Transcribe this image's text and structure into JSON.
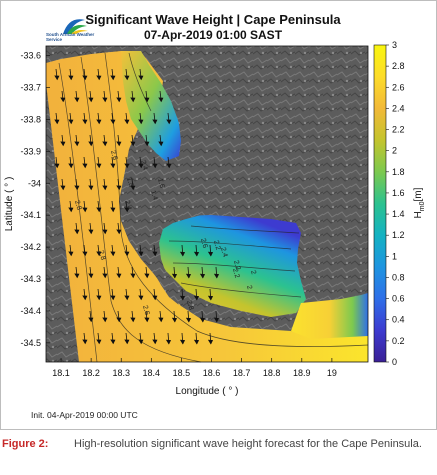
{
  "chart_data": {
    "type": "heatmap",
    "title": "Significant Wave Height | Cape Peninsula",
    "subtitle": "07-Apr-2019  01:00 SAST",
    "logo_text": "South African Weather Service",
    "xlabel": "Longitude ( ° )",
    "ylabel": "Latitude ( ° )",
    "xlim": [
      18.05,
      19.12
    ],
    "ylim": [
      -34.56,
      -33.57
    ],
    "xticks": [
      "18.1",
      "18.2",
      "18.3",
      "18.4",
      "18.5",
      "18.6",
      "18.7",
      "18.8",
      "18.9",
      "19"
    ],
    "yticks": [
      "-33.6",
      "-33.7",
      "-33.8",
      "-33.9",
      "-34",
      "-34.1",
      "-34.2",
      "-34.3",
      "-34.4",
      "-34.5"
    ],
    "colorbar": {
      "label": "H_m0 [m]",
      "range": [
        0,
        3
      ],
      "ticks": [
        "0",
        "0.2",
        "0.4",
        "0.6",
        "0.8",
        "1",
        "1.2",
        "1.4",
        "1.6",
        "1.8",
        "2",
        "2.2",
        "2.4",
        "2.6",
        "2.8",
        "3"
      ],
      "colors": [
        "#3a1f95",
        "#3d3bd0",
        "#2f6fe8",
        "#1e95e0",
        "#14b2c2",
        "#2cc28f",
        "#7cc94f",
        "#c4c42d",
        "#f2b938",
        "#fddc2a",
        "#f9f60f"
      ]
    },
    "contour_labels": [
      "2.8",
      "2.8",
      "2.8",
      "2.6",
      "2.6",
      "2.4",
      "2.4",
      "2.2",
      "2.2",
      "2",
      "1.8",
      "2.6",
      "2.4",
      "2.2",
      "2",
      "1.6",
      "1.4"
    ],
    "land_color": "#5c5c5c"
  },
  "footer": {
    "init_text": "Init. 04-Apr-2019 00:00 UTC"
  },
  "caption": {
    "label": "Figure 2:",
    "text": "High-resolution significant wave height forecast for the Cape Peninsula."
  }
}
